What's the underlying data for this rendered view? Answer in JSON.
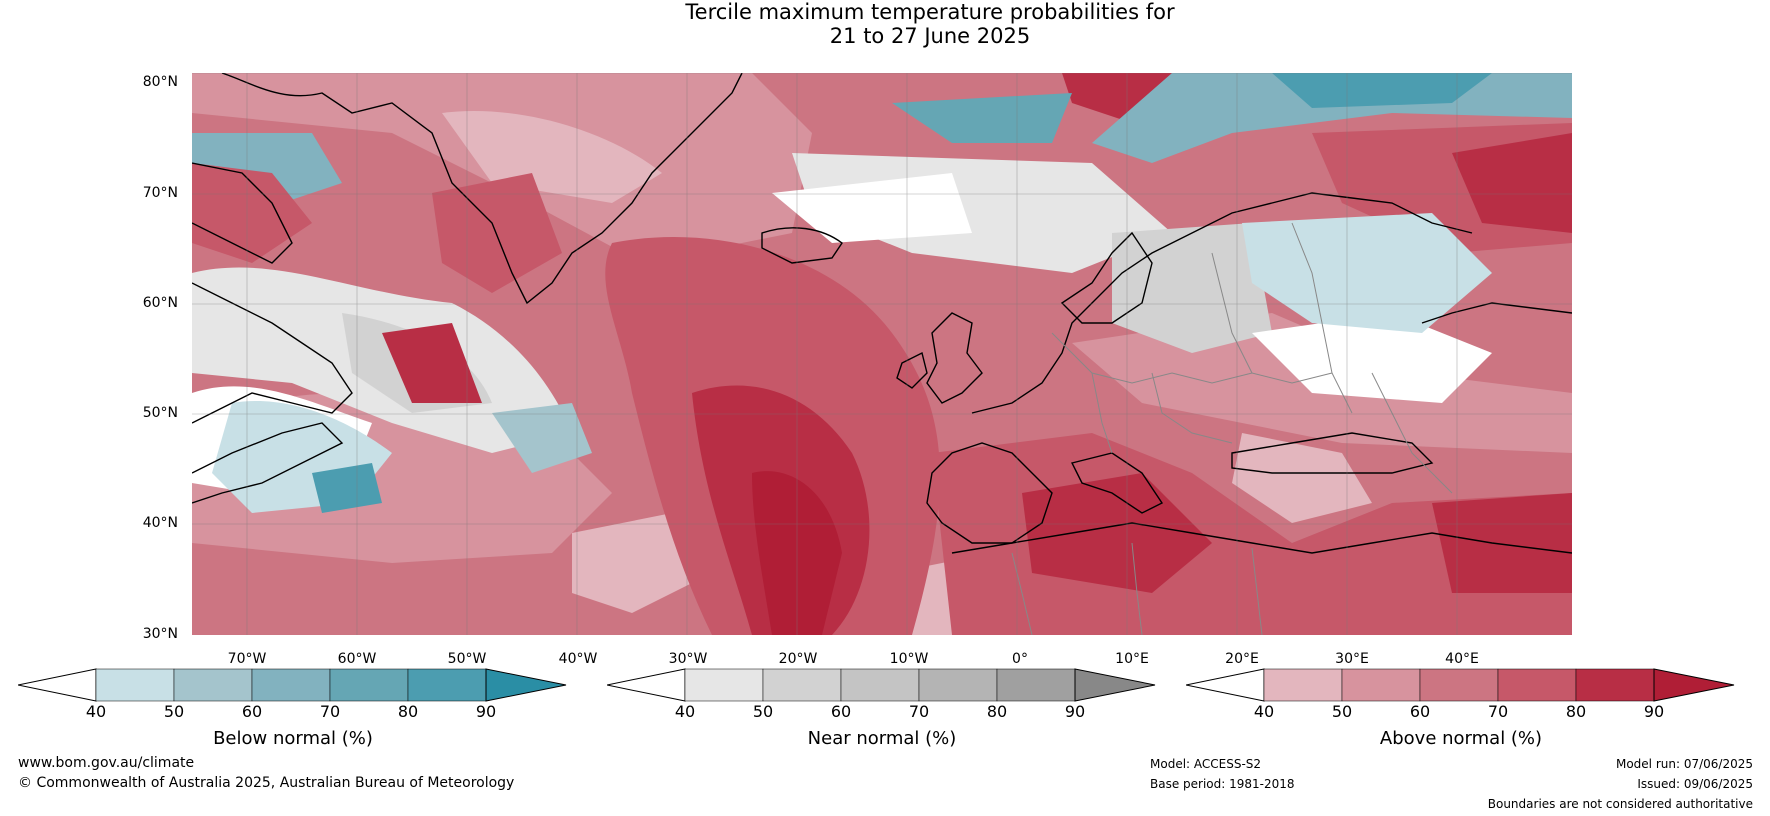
{
  "title": {
    "line1": "Tercile maximum temperature probabilities for",
    "line2": "21 to 27 June 2025"
  },
  "map": {
    "lat_labels": [
      "80°N",
      "70°N",
      "60°N",
      "50°N",
      "40°N",
      "30°N"
    ],
    "lon_labels": [
      "70°W",
      "60°W",
      "50°W",
      "40°W",
      "30°W",
      "20°W",
      "10°W",
      "0°",
      "10°E",
      "20°E",
      "30°E",
      "40°E"
    ],
    "colors": {
      "below": [
        "#c8e0e6",
        "#a4c4cc",
        "#82b2bf",
        "#65a6b4",
        "#4c9db0",
        "#2a8ea5"
      ],
      "near": [
        "#e6e6e6",
        "#d2d2d2",
        "#c4c4c4",
        "#b4b4b4",
        "#a0a0a0",
        "#888888"
      ],
      "above": [
        "#e3b6be",
        "#d7939e",
        "#cc7582",
        "#c65869",
        "#b82e45",
        "#b01e36"
      ]
    }
  },
  "colorbars": [
    {
      "name": "below",
      "label": "Below normal (%)",
      "ticks": [
        "40",
        "50",
        "60",
        "70",
        "80",
        "90"
      ]
    },
    {
      "name": "near",
      "label": "Near normal (%)",
      "ticks": [
        "40",
        "50",
        "60",
        "70",
        "80",
        "90"
      ]
    },
    {
      "name": "above",
      "label": "Above normal (%)",
      "ticks": [
        "40",
        "50",
        "60",
        "70",
        "80",
        "90"
      ]
    }
  ],
  "footer": {
    "website": "www.bom.gov.au/climate",
    "copyright": "© Commonwealth of Australia 2025, Australian Bureau of Meteorology",
    "model": "Model: ACCESS-S2",
    "base_period": "Base period: 1981-2018",
    "model_run": "Model run: 07/06/2025",
    "issued": "Issued: 09/06/2025",
    "disclaimer": "Boundaries are not considered authoritative"
  }
}
